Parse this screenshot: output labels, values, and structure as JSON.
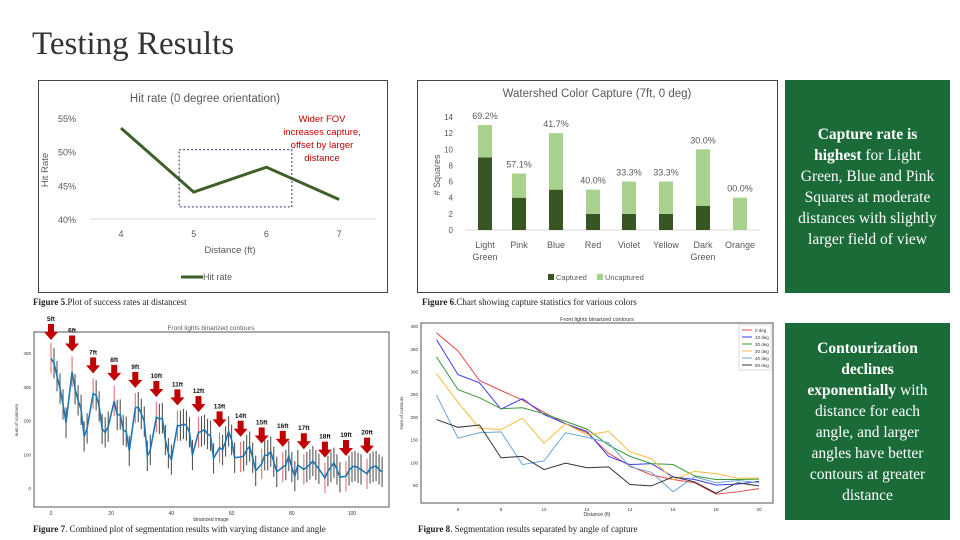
{
  "slide": {
    "title": "Testing Results"
  },
  "captions": {
    "fig5_label": "Figure 5",
    "fig5_text": ".Plot of success rates at distancest",
    "fig6_label": "Figure 6",
    "fig6_text": ".Chart showing capture statistics for various colors",
    "fig7_label": "Figure 7",
    "fig7_text": ". Combined plot of segmentation results with varying distance and angle",
    "fig8_label": "Figure 8",
    "fig8_text": ". Segmentation results separated by angle of capture"
  },
  "panels": {
    "p1_bold": "Capture rate is highest",
    "p1_text": " for  Light Green, Blue and Pink Squares at moderate distances with slightly larger field of view",
    "p2_bold": "Contourization declines exponentially",
    "p2_text": " with distance for each angle, and larger angles have better contours at greater distance",
    "bg_color": "#1b6b39"
  },
  "chart_data": [
    {
      "type": "line",
      "title": "Hit rate (0 degree orientation)",
      "xlabel": "Distance (ft)",
      "ylabel": "Hit Rate",
      "x": [
        4,
        5,
        6,
        7
      ],
      "series": [
        {
          "name": "Hit rate",
          "values": [
            53.5,
            44.0,
            47.7,
            42.9
          ],
          "color": "#3e5f2a"
        }
      ],
      "yticks": [
        "55%",
        "50%",
        "45%",
        "40%"
      ],
      "ylim": [
        40,
        55
      ],
      "annotation": {
        "lines": [
          "Wider FOV",
          "increases capture,",
          "offset by larger",
          "distance"
        ],
        "color": "#c00000"
      },
      "legend": "bottom"
    },
    {
      "type": "bar",
      "stacked": true,
      "title": "Watershed Color Capture (7ft, 0 deg)",
      "ylabel": "# Squares",
      "ylim": [
        0,
        14
      ],
      "yticks": [
        "0",
        "2",
        "4",
        "6",
        "8",
        "10",
        "12",
        "14"
      ],
      "categories": [
        [
          "Light",
          "Green"
        ],
        [
          "Pink"
        ],
        [
          "Blue"
        ],
        [
          "Red"
        ],
        [
          "Violet"
        ],
        [
          "Yellow"
        ],
        [
          "Dark",
          "Green"
        ],
        [
          "Orange"
        ]
      ],
      "series": [
        {
          "name": "Captured",
          "values": [
            9,
            4,
            5,
            2,
            2,
            2,
            3,
            0
          ],
          "color": "#375623"
        },
        {
          "name": "Uncaptured",
          "values": [
            4,
            3,
            7,
            3,
            4,
            4,
            7,
            4
          ],
          "color": "#a9d18e"
        }
      ],
      "data_labels": [
        "69.2%",
        "57.1%",
        "41.7%",
        "40.0%",
        "33.3%",
        "33.3%",
        "30.0%",
        "00.0%"
      ],
      "legend": "bottom"
    },
    {
      "type": "line",
      "title": "Front lights binarized contours",
      "xlabel": "binarized image",
      "ylabel": "num of contours",
      "xticks": [
        "0",
        "20",
        "40",
        "60",
        "80",
        "100"
      ],
      "yticks": [
        "0",
        "100",
        "200",
        "300",
        "400"
      ],
      "ylim": [
        0,
        430
      ],
      "distance_markers": [
        "5ft",
        "6ft",
        "7ft",
        "8ft",
        "9ft",
        "10ft",
        "11ft",
        "12ft",
        "13ft",
        "14ft",
        "15ft",
        "16ft",
        "17ft",
        "18ft",
        "19ft",
        "20ft"
      ],
      "marker_color": "#c00000",
      "line_color": "#1f77b4"
    },
    {
      "type": "line",
      "title": "Front lights binarized contours",
      "xlabel": "Distance (ft)",
      "ylabel": "Num of contours",
      "x": [
        5,
        6,
        7,
        8,
        9,
        10,
        11,
        12,
        13,
        14,
        15,
        16,
        17,
        18,
        19,
        20
      ],
      "xticks": [
        "6",
        "8",
        "10",
        "12",
        "14",
        "16",
        "18",
        "20"
      ],
      "yticks": [
        "50",
        "100",
        "150",
        "200",
        "250",
        "300",
        "350",
        "400"
      ],
      "ylim": [
        25,
        410
      ],
      "legend": "top-right",
      "series": [
        {
          "name": "0 deg",
          "color": "#e8474b",
          "values": [
            385,
            345,
            280,
            258,
            237,
            210,
            185,
            165,
            120,
            92,
            72,
            62,
            55,
            30,
            35,
            42
          ]
        },
        {
          "name": "10 deg",
          "color": "#3b3bf0",
          "values": [
            370,
            293,
            275,
            217,
            240,
            205,
            185,
            168,
            113,
            95,
            97,
            68,
            62,
            50,
            52,
            58
          ]
        },
        {
          "name": "20 deg",
          "color": "#3a9a3a",
          "values": [
            332,
            260,
            242,
            218,
            220,
            207,
            190,
            173,
            138,
            113,
            97,
            95,
            70,
            62,
            62,
            63
          ]
        },
        {
          "name": "30 deg",
          "color": "#f5bd3a",
          "values": [
            295,
            232,
            175,
            172,
            197,
            142,
            185,
            160,
            168,
            123,
            108,
            62,
            80,
            75,
            65,
            65
          ]
        },
        {
          "name": "40 deg",
          "color": "#6aa5d8",
          "values": [
            248,
            153,
            165,
            167,
            95,
            103,
            165,
            155,
            143,
            90,
            78,
            35,
            68,
            55,
            60,
            55
          ]
        },
        {
          "name": "50 deg",
          "color": "#333333",
          "values": [
            194,
            177,
            182,
            110,
            113,
            84,
            98,
            88,
            90,
            51,
            48,
            68,
            57,
            32,
            55,
            48
          ]
        }
      ]
    }
  ]
}
